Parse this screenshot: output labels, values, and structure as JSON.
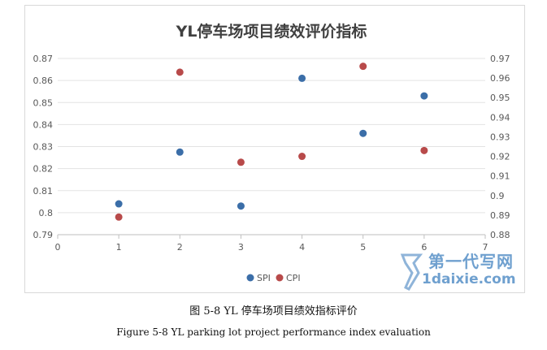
{
  "chart_data": {
    "type": "scatter",
    "title": "YL停车场项目绩效评价指标",
    "xlim": [
      0,
      7
    ],
    "x_ticks": [
      "0",
      "1",
      "2",
      "3",
      "4",
      "5",
      "6",
      "7"
    ],
    "y_left": {
      "lim": [
        0.79,
        0.87
      ],
      "ticks": [
        "0.79",
        "0.8",
        "0.81",
        "0.82",
        "0.83",
        "0.84",
        "0.85",
        "0.86",
        "0.87"
      ]
    },
    "y_right": {
      "lim": [
        0.88,
        0.97
      ],
      "ticks": [
        "0.88",
        "0.89",
        "0.9",
        "0.91",
        "0.92",
        "0.93",
        "0.94",
        "0.95",
        "0.96",
        "0.97"
      ]
    },
    "grid": "horizontal",
    "legend_position": "bottom",
    "series": [
      {
        "name": "SPI",
        "axis": "left",
        "color": "#3b6ea8",
        "x": [
          1,
          2,
          3,
          4,
          5,
          6
        ],
        "y": [
          0.804,
          0.8275,
          0.803,
          0.861,
          0.836,
          0.853
        ]
      },
      {
        "name": "CPI",
        "axis": "right",
        "color": "#b84a4a",
        "x": [
          1,
          2,
          3,
          4,
          5,
          6
        ],
        "y": [
          0.889,
          0.963,
          0.917,
          0.92,
          0.966,
          0.923
        ]
      }
    ]
  },
  "captions": {
    "cn": "图 5-8 YL 停车场项目绩效指标评价",
    "en": "Figure 5-8 YL parking lot project performance index evaluation"
  },
  "watermark": {
    "line1": "第一代写网",
    "line2": "1daixie.com"
  }
}
